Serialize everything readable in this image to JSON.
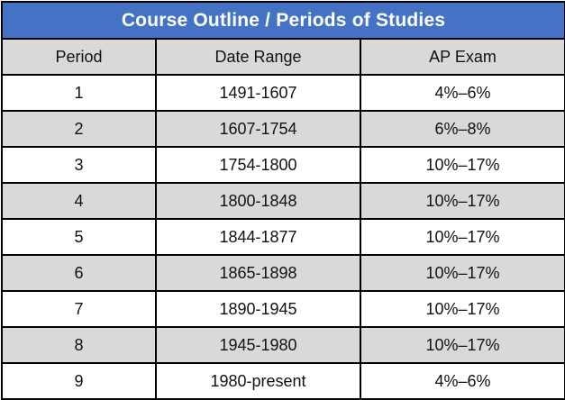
{
  "table": {
    "title": "Course Outline / Periods of Studies",
    "columns": [
      "Period",
      "Date Range",
      "AP Exam"
    ],
    "rows": [
      {
        "period": "1",
        "date_range": "1491-1607",
        "ap_exam": "4%–6%"
      },
      {
        "period": "2",
        "date_range": "1607-1754",
        "ap_exam": "6%–8%"
      },
      {
        "period": "3",
        "date_range": "1754-1800",
        "ap_exam": "10%–17%"
      },
      {
        "period": "4",
        "date_range": "1800-1848",
        "ap_exam": "10%–17%"
      },
      {
        "period": "5",
        "date_range": "1844-1877",
        "ap_exam": "10%–17%"
      },
      {
        "period": "6",
        "date_range": "1865-1898",
        "ap_exam": "10%–17%"
      },
      {
        "period": "7",
        "date_range": "1890-1945",
        "ap_exam": "10%–17%"
      },
      {
        "period": "8",
        "date_range": "1945-1980",
        "ap_exam": "10%–17%"
      },
      {
        "period": "9",
        "date_range": "1980-present",
        "ap_exam": "4%–6%"
      }
    ]
  },
  "colors": {
    "title_background": "#4472c4",
    "title_text": "#ffffff",
    "header_background": "#d9d9d9",
    "alternate_row_background": "#d9d9d9",
    "border": "#000000"
  }
}
